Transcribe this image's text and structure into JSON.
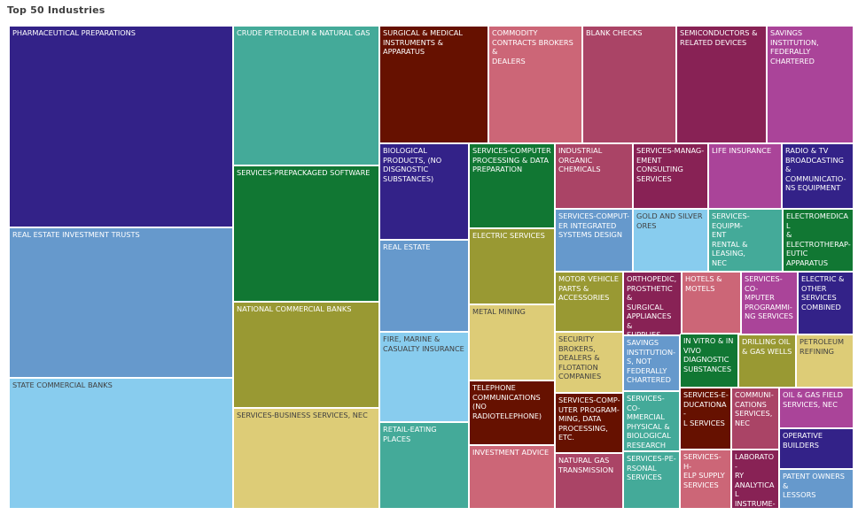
{
  "chart_data": {
    "type": "treemap",
    "title": "Top 50 Industries",
    "items": [
      {
        "label": "PHARMACEUTICAL PREPARATIONS",
        "color": "#332288",
        "text": "#ffffff"
      },
      {
        "label": "REAL ESTATE INVESTMENT TRUSTS",
        "color": "#6699cc",
        "text": "#ffffff"
      },
      {
        "label": "STATE COMMERCIAL BANKS",
        "color": "#88ccee",
        "text": "#404040"
      },
      {
        "label": "CRUDE PETROLEUM & NATURAL GAS",
        "color": "#44aa99",
        "text": "#ffffff"
      },
      {
        "label": "SERVICES-PREPACKAGED SOFTWARE",
        "color": "#117733",
        "text": "#ffffff"
      },
      {
        "label": "NATIONAL COMMERCIAL BANKS",
        "color": "#999933",
        "text": "#ffffff"
      },
      {
        "label": "SERVICES-BUSINESS SERVICES, NEC",
        "color": "#ddcc77",
        "text": "#404040"
      },
      {
        "label": "SURGICAL & MEDICAL\nINSTRUMENTS & APPARATUS",
        "color": "#661100",
        "text": "#ffffff"
      },
      {
        "label": "COMMODITY\nCONTRACTS BROKERS &\nDEALERS",
        "color": "#cc6677",
        "text": "#ffffff"
      },
      {
        "label": "BLANK CHECKS",
        "color": "#aa4466",
        "text": "#ffffff"
      },
      {
        "label": "SEMICONDUCTORS &\nRELATED DEVICES",
        "color": "#882255",
        "text": "#ffffff"
      },
      {
        "label": "SAVINGS INSTITUTION,\nFEDERALLY\nCHARTERED",
        "color": "#aa4499",
        "text": "#ffffff"
      },
      {
        "label": "BIOLOGICAL\nPRODUCTS, (NO\nDISGNOSTIC\nSUBSTANCES)",
        "color": "#332288",
        "text": "#ffffff"
      },
      {
        "label": "REAL ESTATE",
        "color": "#6699cc",
        "text": "#ffffff"
      },
      {
        "label": "FIRE, MARINE &\nCASUALTY INSURANCE",
        "color": "#88ccee",
        "text": "#404040"
      },
      {
        "label": "RETAIL-EATING PLACES",
        "color": "#44aa99",
        "text": "#ffffff"
      },
      {
        "label": "SERVICES-COMPUTER\nPROCESSING & DATA\nPREPARATION",
        "color": "#117733",
        "text": "#ffffff"
      },
      {
        "label": "ELECTRIC SERVICES",
        "color": "#999933",
        "text": "#ffffff"
      },
      {
        "label": "METAL MINING",
        "color": "#ddcc77",
        "text": "#404040"
      },
      {
        "label": "TELEPHONE\nCOMMUNICATIONS\n(NO\nRADIOTELEPHONE)",
        "color": "#661100",
        "text": "#ffffff"
      },
      {
        "label": "INVESTMENT ADVICE",
        "color": "#cc6677",
        "text": "#ffffff"
      },
      {
        "label": "INDUSTRIAL\nORGANIC\nCHEMICALS",
        "color": "#aa4466",
        "text": "#ffffff"
      },
      {
        "label": "SERVICES-MANAG-\nEMENT\nCONSULTING\nSERVICES",
        "color": "#882255",
        "text": "#ffffff"
      },
      {
        "label": "LIFE INSURANCE",
        "color": "#aa4499",
        "text": "#ffffff"
      },
      {
        "label": "RADIO & TV\nBROADCASTING &\nCOMMUNICATIO-\nNS EQUIPMENT",
        "color": "#332288",
        "text": "#ffffff"
      },
      {
        "label": "SERVICES-COMPUT-\nER INTEGRATED\nSYSTEMS DESIGN",
        "color": "#6699cc",
        "text": "#ffffff"
      },
      {
        "label": "GOLD AND SILVER\nORES",
        "color": "#88ccee",
        "text": "#404040"
      },
      {
        "label": "SERVICES-EQUIPM-\nENT\nRENTAL & LEASING,\nNEC",
        "color": "#44aa99",
        "text": "#ffffff"
      },
      {
        "label": "ELECTROMEDICAL\n&\nELECTROTHERAP-\nEUTIC APPARATUS",
        "color": "#117733",
        "text": "#ffffff"
      },
      {
        "label": "MOTOR VEHICLE\nPARTS &\nACCESSORIES",
        "color": "#999933",
        "text": "#ffffff"
      },
      {
        "label": "SECURITY\nBROKERS,\nDEALERS &\nFLOTATION\nCOMPANIES",
        "color": "#ddcc77",
        "text": "#404040"
      },
      {
        "label": "SERVICES-COMP-\nUTER PROGRAM-\nMING, DATA\nPROCESSING,\nETC.",
        "color": "#661100",
        "text": "#ffffff"
      },
      {
        "label": "NATURAL GAS\nTRANSMISSION",
        "color": "#aa4466",
        "text": "#ffffff"
      },
      {
        "label": "ORTHOPEDIC,\nPROSTHETIC &\nSURGICAL\nAPPLIANCES &\nSUPPLIES",
        "color": "#882255",
        "text": "#ffffff"
      },
      {
        "label": "SAVINGS\nINSTITUTION-\nS, NOT\nFEDERALLY\nCHARTERED",
        "color": "#6699cc",
        "text": "#ffffff"
      },
      {
        "label": "SERVICES-CO-\nMMERCIAL\nPHYSICAL &\nBIOLOGICAL\nRESEARCH",
        "color": "#44aa99",
        "text": "#ffffff"
      },
      {
        "label": "SERVICES-PE-\nRSONAL\nSERVICES",
        "color": "#44aa99",
        "text": "#ffffff"
      },
      {
        "label": "HOTELS &\nMOTELS",
        "color": "#cc6677",
        "text": "#ffffff"
      },
      {
        "label": "SERVICES-CO-\nMPUTER\nPROGRAMMI-\nNG SERVICES",
        "color": "#aa4499",
        "text": "#ffffff"
      },
      {
        "label": "ELECTRIC &\nOTHER\nSERVICES\nCOMBINED",
        "color": "#332288",
        "text": "#ffffff"
      },
      {
        "label": "IN VITRO & IN\nVIVO\nDIAGNOSTIC\nSUBSTANCES",
        "color": "#117733",
        "text": "#ffffff"
      },
      {
        "label": "DRILLING OIL\n& GAS WELLS",
        "color": "#999933",
        "text": "#ffffff"
      },
      {
        "label": "PETROLEUM\nREFINING",
        "color": "#ddcc77",
        "text": "#404040"
      },
      {
        "label": "SERVICES-E-\nDUCATIONA-\nL SERVICES",
        "color": "#661100",
        "text": "#ffffff"
      },
      {
        "label": "COMMUNI-\nCATIONS\nSERVICES,\nNEC",
        "color": "#aa4466",
        "text": "#ffffff"
      },
      {
        "label": "OIL & GAS FIELD\nSERVICES, NEC",
        "color": "#aa4499",
        "text": "#ffffff"
      },
      {
        "label": "OPERATIVE\nBUILDERS",
        "color": "#332288",
        "text": "#ffffff"
      },
      {
        "label": "SERVICES-H-\nELP SUPPLY\nSERVICES",
        "color": "#cc6677",
        "text": "#ffffff"
      },
      {
        "label": "LABORATO-\nRY\nANALYTICAL\nINSTRUME-\nNTS",
        "color": "#882255",
        "text": "#ffffff"
      },
      {
        "label": "PATENT OWNERS &\nLESSORS",
        "color": "#6699cc",
        "text": "#ffffff"
      }
    ]
  }
}
